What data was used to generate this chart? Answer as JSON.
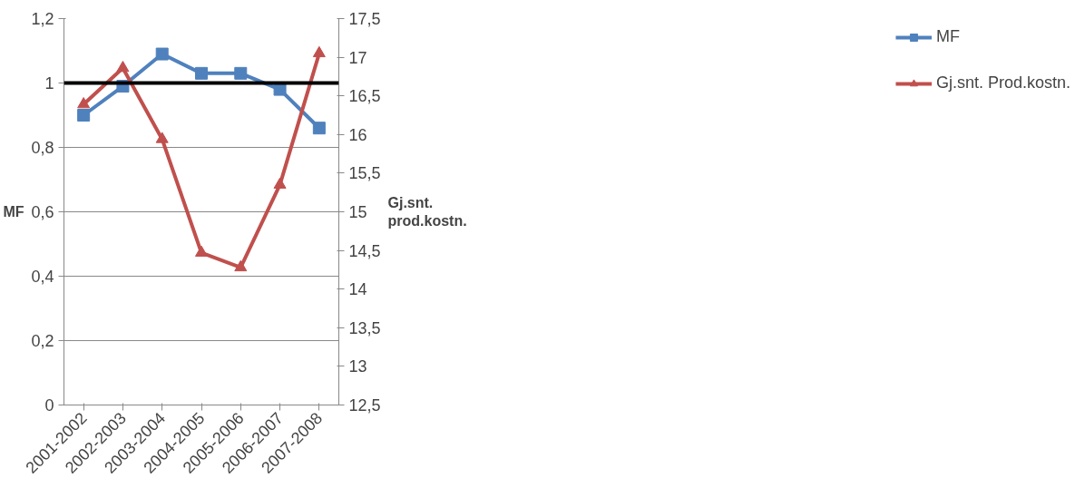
{
  "chart_data": {
    "type": "line",
    "categories": [
      "2001-2002",
      "2002-2003",
      "2003-2004",
      "2004-2005",
      "2005-2006",
      "2006-2007",
      "2007-2008"
    ],
    "ylabel": "MF",
    "y2label": "Gj.snt.\nprod.kostn.",
    "ylim": [
      0,
      1.2
    ],
    "yticks": [
      {
        "value": 0,
        "label": "0"
      },
      {
        "value": 0.2,
        "label": "0,2"
      },
      {
        "value": 0.4,
        "label": "0,4"
      },
      {
        "value": 0.6,
        "label": "0,6"
      },
      {
        "value": 0.8,
        "label": "0,8"
      },
      {
        "value": 1,
        "label": "1"
      },
      {
        "value": 1.2,
        "label": "1,2"
      }
    ],
    "y2lim": [
      12.5,
      17.5
    ],
    "y2ticks": [
      {
        "value": 12.5,
        "label": "12,5"
      },
      {
        "value": 13,
        "label": "13"
      },
      {
        "value": 13.5,
        "label": "13,5"
      },
      {
        "value": 14,
        "label": "14"
      },
      {
        "value": 14.5,
        "label": "14,5"
      },
      {
        "value": 15,
        "label": "15"
      },
      {
        "value": 15.5,
        "label": "15,5"
      },
      {
        "value": 16,
        "label": "16"
      },
      {
        "value": 16.5,
        "label": "16,5"
      },
      {
        "value": 17,
        "label": "17"
      },
      {
        "value": 17.5,
        "label": "17,5"
      }
    ],
    "grid": "y",
    "legend": "right",
    "ref_lines": [
      {
        "axis": "y",
        "value": 1,
        "color": "#000000"
      }
    ],
    "series": [
      {
        "name": "MF",
        "color": "#4f81bd",
        "marker": "square",
        "values": [
          0.9,
          0.99,
          1.09,
          1.03,
          1.03,
          0.98,
          0.86
        ]
      },
      {
        "name": "Gj.snt. Prod.kostn.",
        "color": "#c0504d",
        "marker": "triangle",
        "axis": "y2",
        "values": [
          16.39,
          16.86,
          15.94,
          14.47,
          14.28,
          15.35,
          17.05
        ]
      }
    ]
  }
}
